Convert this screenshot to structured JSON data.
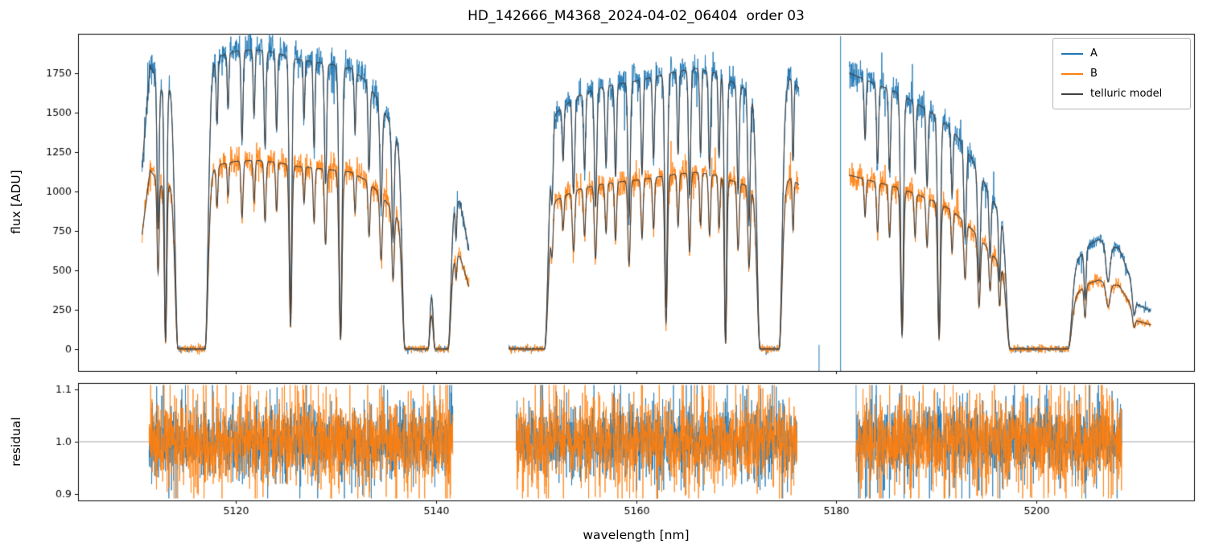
{
  "chart_data": {
    "type": "line",
    "title": "HD_142666_M4368_2024-04-02_06404  order 03",
    "xlabel": "wavelength [nm]",
    "xlim": [
      5104.2,
      5215.8
    ],
    "xticks": [
      5120,
      5140,
      5160,
      5180,
      5200
    ],
    "panels": [
      {
        "name": "flux",
        "ylabel": "flux [ADU]",
        "ylim": [
          -140,
          2000
        ],
        "yticks": [
          0,
          250,
          500,
          750,
          1000,
          1250,
          1500,
          1750
        ],
        "ytick_decimals": 0
      },
      {
        "name": "residual",
        "ylabel": "residual",
        "ylim": [
          0.888,
          1.112
        ],
        "yticks": [
          0.9,
          1.0,
          1.1
        ],
        "ytick_decimals": 1,
        "refline": 1.0
      }
    ],
    "legend": [
      {
        "label": "A",
        "color": "#1f77b4"
      },
      {
        "label": "B",
        "color": "#ff7f0e"
      },
      {
        "label": "telluric model",
        "color": "#404040"
      }
    ],
    "series": {
      "b_scale": 0.63,
      "noise": {
        "mult_a": 0.027,
        "mult_b": 0.038,
        "add_a": 9,
        "add_b": 12
      },
      "segments": [
        {
          "xrange": [
            5110.6,
            5143.3
          ],
          "envelope": [
            [
              5110.6,
              1150
            ],
            [
              5111.4,
              1800
            ],
            [
              5112.5,
              1650
            ],
            [
              5113.5,
              1680
            ],
            [
              5115.0,
              1700
            ],
            [
              5117.0,
              1780
            ],
            [
              5118.5,
              1860
            ],
            [
              5120.0,
              1890
            ],
            [
              5122.0,
              1900
            ],
            [
              5124.0,
              1880
            ],
            [
              5126.0,
              1840
            ],
            [
              5128.0,
              1820
            ],
            [
              5130.0,
              1800
            ],
            [
              5131.5,
              1780
            ],
            [
              5133.0,
              1700
            ],
            [
              5134.5,
              1550
            ],
            [
              5136.0,
              1350
            ],
            [
              5137.5,
              1250
            ],
            [
              5139.0,
              1150
            ],
            [
              5140.5,
              1050
            ],
            [
              5141.5,
              980
            ],
            [
              5142.4,
              930
            ],
            [
              5143.3,
              620
            ]
          ],
          "lines": [
            [
              5112.2,
              0.55,
              0.1,
              0
            ],
            [
              5112.95,
              0.96,
              0.12,
              0
            ],
            [
              5115.55,
              1.0,
              0.3,
              1.35
            ],
            [
              5118.1,
              0.22,
              0.09,
              0
            ],
            [
              5119.2,
              0.18,
              0.08,
              0
            ],
            [
              5120.6,
              0.3,
              0.1,
              0
            ],
            [
              5121.8,
              0.22,
              0.09,
              0
            ],
            [
              5122.9,
              0.32,
              0.1,
              0
            ],
            [
              5124.05,
              0.26,
              0.09,
              0
            ],
            [
              5125.45,
              0.88,
              0.13,
              0
            ],
            [
              5126.8,
              0.2,
              0.08,
              0
            ],
            [
              5127.8,
              0.3,
              0.09,
              0
            ],
            [
              5128.95,
              0.42,
              0.11,
              0
            ],
            [
              5130.45,
              0.95,
              0.15,
              0
            ],
            [
              5131.9,
              0.22,
              0.08,
              0
            ],
            [
              5133.3,
              0.32,
              0.1,
              0
            ],
            [
              5134.5,
              0.42,
              0.12,
              0
            ],
            [
              5135.7,
              0.5,
              0.12,
              0
            ],
            [
              5138.05,
              1.0,
              0.28,
              1.15
            ],
            [
              5140.55,
              1.0,
              0.28,
              0.65
            ],
            [
              5142.0,
              0.25,
              0.08,
              0
            ]
          ]
        },
        {
          "xrange": [
            5147.3,
            5176.3
          ],
          "envelope": [
            [
              5147.3,
              1200
            ],
            [
              5150.0,
              1350
            ],
            [
              5152.0,
              1500
            ],
            [
              5154.0,
              1600
            ],
            [
              5156.0,
              1650
            ],
            [
              5158.0,
              1680
            ],
            [
              5160.0,
              1700
            ],
            [
              5162.0,
              1730
            ],
            [
              5164.0,
              1760
            ],
            [
              5166.0,
              1780
            ],
            [
              5168.0,
              1750
            ],
            [
              5170.0,
              1680
            ],
            [
              5172.0,
              1620
            ],
            [
              5174.0,
              1650
            ],
            [
              5175.5,
              1720
            ],
            [
              5176.3,
              1650
            ]
          ],
          "lines": [
            [
              5149.1,
              1.0,
              0.35,
              1.75
            ],
            [
              5151.6,
              0.3,
              0.1,
              0
            ],
            [
              5152.7,
              0.22,
              0.09,
              0
            ],
            [
              5153.75,
              0.38,
              0.12,
              0
            ],
            [
              5154.85,
              0.3,
              0.1,
              0
            ],
            [
              5155.95,
              0.45,
              0.12,
              0
            ],
            [
              5157.0,
              0.3,
              0.1,
              0
            ],
            [
              5157.95,
              0.35,
              0.1,
              0
            ],
            [
              5159.3,
              0.5,
              0.12,
              0
            ],
            [
              5160.6,
              0.35,
              0.1,
              0
            ],
            [
              5161.75,
              0.3,
              0.1,
              0
            ],
            [
              5163.0,
              0.85,
              0.13,
              0
            ],
            [
              5164.2,
              0.3,
              0.09,
              0
            ],
            [
              5165.35,
              0.45,
              0.11,
              0
            ],
            [
              5166.45,
              0.3,
              0.09,
              0
            ],
            [
              5167.35,
              0.35,
              0.1,
              0
            ],
            [
              5168.3,
              0.3,
              0.09,
              0
            ],
            [
              5168.95,
              0.97,
              0.12,
              0
            ],
            [
              5170.2,
              0.4,
              0.11,
              0
            ],
            [
              5171.3,
              0.5,
              0.12,
              0
            ],
            [
              5173.35,
              1.0,
              0.3,
              0.95
            ],
            [
              5175.7,
              0.3,
              0.08,
              0
            ]
          ]
        },
        {
          "xrange": [
            5181.3,
            5211.5
          ],
          "envelope": [
            [
              5181.3,
              1750
            ],
            [
              5182.5,
              1720
            ],
            [
              5184.0,
              1680
            ],
            [
              5186.0,
              1630
            ],
            [
              5188.0,
              1560
            ],
            [
              5190.0,
              1480
            ],
            [
              5191.5,
              1400
            ],
            [
              5193.0,
              1270
            ],
            [
              5194.5,
              1100
            ],
            [
              5196.0,
              900
            ],
            [
              5197.5,
              800
            ],
            [
              5199.0,
              750
            ],
            [
              5201.0,
              720
            ],
            [
              5203.3,
              500
            ],
            [
              5204.3,
              580
            ],
            [
              5205.3,
              660
            ],
            [
              5206.3,
              695
            ],
            [
              5207.3,
              650
            ],
            [
              5208.3,
              640
            ],
            [
              5209.3,
              470
            ],
            [
              5210.2,
              280
            ],
            [
              5211.5,
              240
            ]
          ],
          "lines": [
            [
              5182.9,
              0.22,
              0.09,
              0
            ],
            [
              5184.15,
              0.3,
              0.1,
              0
            ],
            [
              5185.35,
              0.32,
              0.1,
              0
            ],
            [
              5186.6,
              0.92,
              0.14,
              0
            ],
            [
              5187.9,
              0.28,
              0.09,
              0
            ],
            [
              5189.1,
              0.32,
              0.1,
              0
            ],
            [
              5190.3,
              0.93,
              0.14,
              0
            ],
            [
              5191.6,
              0.3,
              0.09,
              0
            ],
            [
              5192.9,
              0.45,
              0.12,
              0
            ],
            [
              5194.3,
              0.62,
              0.13,
              0
            ],
            [
              5195.4,
              0.4,
              0.1,
              0
            ],
            [
              5196.35,
              0.5,
              0.1,
              0
            ],
            [
              5200.3,
              1.0,
              0.35,
              2.9
            ],
            [
              5204.9,
              0.5,
              0.1,
              0
            ],
            [
              5207.2,
              0.35,
              0.2,
              0
            ],
            [
              5209.8,
              0.4,
              0.15,
              0
            ]
          ]
        }
      ],
      "artifacts": [
        {
          "x": 5180.45,
          "y0": -140,
          "y1": 1985
        },
        {
          "x": 5178.3,
          "y0": -140,
          "y1": 25
        }
      ],
      "residual": {
        "sigma_a": 0.03,
        "sigma_b": 0.037,
        "clip": 0.108,
        "segments": [
          [
            5111.3,
            5141.7
          ],
          [
            5148.0,
            5176.1
          ],
          [
            5182.0,
            5208.6
          ]
        ]
      }
    }
  }
}
